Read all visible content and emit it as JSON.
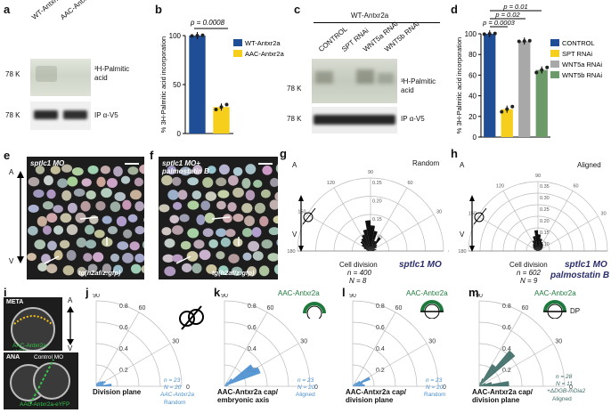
{
  "panels": {
    "a": {
      "label": "a",
      "lanes": [
        "WT-Antxr2a",
        "AAC-Antxr2a"
      ],
      "kda": [
        "78 K",
        "78 K"
      ],
      "right1": "³H-Palmitic",
      "right1b": "acid",
      "right2": "IP α-V5"
    },
    "b": {
      "label": "b",
      "p": "p = 0.0008"
    },
    "c": {
      "label": "c",
      "header": "WT-Antxr2a",
      "lanes": [
        "CONTROL",
        "SPT RNAi",
        "WNT5a RNAi",
        "WNT5b RNAi"
      ],
      "kda": [
        "78 K",
        "78 K"
      ],
      "right1": "³H-Palmitic",
      "right1b": "acid",
      "right2": "IP α-V5"
    },
    "d": {
      "label": "d",
      "p": [
        "p = 0.01",
        "p = 0.02",
        "p = 0.0003"
      ]
    },
    "e": {
      "label": "e",
      "title": "sptlc1 MO",
      "foot": "tg(h2af/z:gfp)",
      "axis_top": "A",
      "axis_bottom": "V"
    },
    "f": {
      "label": "f",
      "title1": "sptlc1 MO+",
      "title2": "palmostatin B",
      "foot": "tg(h2af/z:gfp)"
    },
    "g": {
      "label": "g",
      "tag": "Random",
      "caption": "Cell division",
      "n": "n = 400",
      "N": "N = 8",
      "mo": "sptlc1 MO",
      "axis_top": "A",
      "axis_bottom": "V"
    },
    "h": {
      "label": "h",
      "tag": "Aligned",
      "caption": "Cell division",
      "n": "n = 602",
      "N": "N = 9",
      "mo1": "sptlc1 MO",
      "mo2": "palmostatin B",
      "axis_top": "A",
      "axis_bottom": "V"
    },
    "i": {
      "label": "i",
      "meta": "META",
      "ana": "ANA",
      "control": "Control MO",
      "yfp1": "AAC-Antxr2a-eYFP",
      "yfp2": "AAC-Antxr2a-eYFP",
      "axis_top": "A",
      "axis_bottom": "V"
    },
    "j": {
      "label": "j",
      "caption": "Division plane",
      "n": "n = 23",
      "N": "N = 20",
      "cond": "AAC-Antxr2a",
      "tag": "Random"
    },
    "k": {
      "label": "k",
      "top": "AAC-Antxr2a",
      "caption1": "AAC-Antxr2a cap/",
      "caption2": "embryonic axis",
      "n": "n = 23",
      "N": "N = 20",
      "tag": "Aligned"
    },
    "l": {
      "label": "l",
      "top": "AAC-Antxr2a",
      "caption1": "AAC-Antxr2a cap/",
      "caption2": "division plane",
      "n": "n = 23",
      "N": "N = 20",
      "tag": "Random"
    },
    "m": {
      "label": "m",
      "top": "AAC-Antxr2a",
      "dp": "DP",
      "caption1": "AAC-Antxr2a cap/",
      "caption2": "division plane",
      "n": "n = 28",
      "N": "N = 11",
      "cond": "+ΔDGB-mDia2",
      "tag": "Aligned"
    }
  },
  "chart_data": [
    {
      "type": "bar",
      "panel": "b",
      "categories": [
        "WT-Antxr2a",
        "AAC-Antxr2a"
      ],
      "values": [
        100,
        27
      ],
      "ylabel": "% 3H-Palmitic acid incorporation",
      "ylim": [
        0,
        100
      ],
      "yticks": [
        0,
        50,
        100
      ],
      "legend": [
        "WT-Antxr2a",
        "AAC-Antxr2a"
      ],
      "colors": [
        "#1f4e96",
        "#f5cf1b"
      ]
    },
    {
      "type": "bar",
      "panel": "d",
      "categories": [
        "CONTROL",
        "SPT RNAi",
        "WNT5a RNAi",
        "WNT5b RNAi"
      ],
      "values": [
        100,
        27,
        93,
        65
      ],
      "ylabel": "% 3H-Palmitic acid incorporation",
      "ylim": [
        0,
        100
      ],
      "yticks": [
        0,
        20,
        40,
        60,
        80,
        100
      ],
      "legend": [
        "CONTROL",
        "SPT RNAi",
        "WNT5a RNAi",
        "WNT5b RNAi"
      ],
      "colors": [
        "#1f4e96",
        "#f5cf1b",
        "#a8a8a8",
        "#6c9a68"
      ]
    },
    {
      "type": "polar",
      "panel": "g",
      "rticks": [
        "0.10",
        "0.15",
        "0.20",
        "0.25"
      ],
      "angles": [
        "0",
        "30",
        "60",
        "90",
        "120",
        "150",
        "180"
      ]
    },
    {
      "type": "polar",
      "panel": "h",
      "rticks": [
        "0.10",
        "0.15",
        "0.20",
        "0.25",
        "0.30",
        "0.35"
      ],
      "angles": [
        "0",
        "30",
        "60",
        "90",
        "120",
        "150",
        "180"
      ]
    },
    {
      "type": "polar",
      "panel": "j",
      "rticks": [
        "0.2",
        "0.4",
        "0.6",
        "0.8"
      ],
      "angles": [
        "0",
        "30",
        "60",
        "90"
      ],
      "color": "#4a8fd0"
    },
    {
      "type": "polar",
      "panel": "k",
      "rticks": [
        "0.2",
        "0.4",
        "0.6",
        "0.8"
      ],
      "angles": [
        "0",
        "30",
        "60",
        "90"
      ],
      "color": "#4a8fd0"
    },
    {
      "type": "polar",
      "panel": "l",
      "rticks": [
        "0.2",
        "0.4",
        "0.6",
        "0.8"
      ],
      "angles": [
        "0",
        "30",
        "60",
        "90"
      ],
      "color": "#4a8fd0"
    },
    {
      "type": "polar",
      "panel": "m",
      "rticks": [
        "0.2",
        "0.4",
        "0.6",
        "0.8"
      ],
      "angles": [
        "0",
        "30",
        "60",
        "90"
      ],
      "color": "#3e6b66"
    }
  ]
}
